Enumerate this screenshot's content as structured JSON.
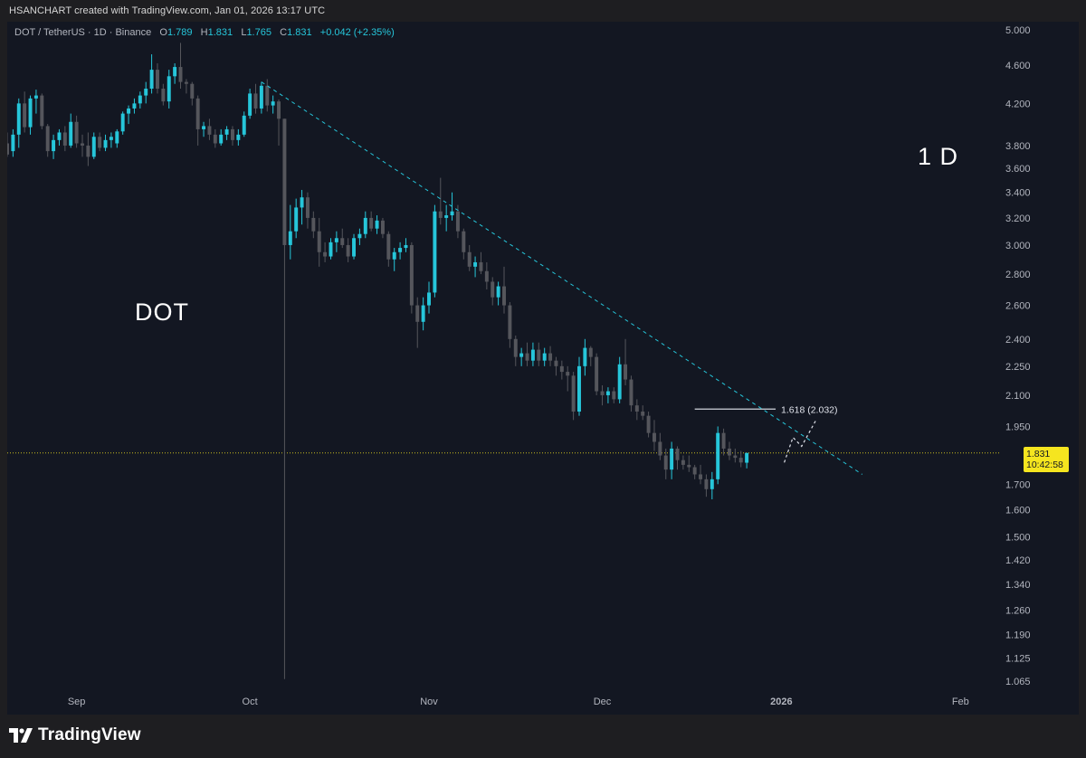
{
  "header": {
    "text": "HSANCHART created with TradingView.com, Jan 01, 2026 13:17 UTC"
  },
  "legend": {
    "symbol": "DOT / TetherUS · 1D · Binance",
    "o_label": "O",
    "o": "1.789",
    "h_label": "H",
    "h": "1.831",
    "l_label": "L",
    "l": "1.765",
    "c_label": "C",
    "c": "1.831",
    "change": "+0.042 (+2.35%)"
  },
  "annotations": {
    "left_label": "DOT",
    "right_label": "1 D",
    "fib_label": "1.618 (2.032)"
  },
  "price_tag": {
    "price": "1.831",
    "countdown": "10:42:58"
  },
  "footer": {
    "brand": "TradingView"
  },
  "colors": {
    "background": "#131722",
    "up": "#26c6da",
    "down": "#55565c",
    "trendline": "#26c6da",
    "price_tag": "#f5e51f"
  },
  "chart_data": {
    "type": "candlestick",
    "y_scale": "log",
    "ylim": [
      1.04,
      5.1
    ],
    "y_ticks": [
      "5.000",
      "4.600",
      "4.200",
      "3.800",
      "3.600",
      "3.400",
      "3.200",
      "3.000",
      "2.800",
      "2.600",
      "2.400",
      "2.250",
      "2.100",
      "1.950",
      "1.700",
      "1.600",
      "1.500",
      "1.420",
      "1.340",
      "1.260",
      "1.190",
      "1.125",
      "1.065"
    ],
    "x_ticks": [
      {
        "label": "Sep",
        "day": 8
      },
      {
        "label": "Oct",
        "day": 38
      },
      {
        "label": "Nov",
        "day": 69
      },
      {
        "label": "Dec",
        "day": 99
      },
      {
        "label": "2026",
        "day": 130,
        "bold": true
      },
      {
        "label": "Feb",
        "day": 161
      }
    ],
    "x_range_days": [
      -4,
      168
    ],
    "current_price": 1.831,
    "fib_level": {
      "ratio": 1.618,
      "price": 2.032,
      "day_from": 115,
      "day_to": 129
    },
    "trendline": {
      "from": {
        "day": 40,
        "price": 4.42
      },
      "to": {
        "day": 144,
        "price": 1.74
      }
    },
    "projection_path": [
      {
        "day": 130.5,
        "price": 1.79
      },
      {
        "day": 132,
        "price": 1.9
      },
      {
        "day": 133.5,
        "price": 1.86
      },
      {
        "day": 136,
        "price": 1.98
      }
    ],
    "candles": [
      {
        "day": -4,
        "o": 3.82,
        "h": 3.92,
        "l": 3.7,
        "c": 3.72
      },
      {
        "day": -3,
        "o": 3.75,
        "h": 3.95,
        "l": 3.7,
        "c": 3.9
      },
      {
        "day": -2,
        "o": 3.9,
        "h": 4.25,
        "l": 3.78,
        "c": 4.2
      },
      {
        "day": -1,
        "o": 4.2,
        "h": 4.32,
        "l": 3.92,
        "c": 3.97
      },
      {
        "day": 0,
        "o": 3.97,
        "h": 4.28,
        "l": 3.9,
        "c": 4.25
      },
      {
        "day": 1,
        "o": 4.25,
        "h": 4.34,
        "l": 4.1,
        "c": 4.28
      },
      {
        "day": 2,
        "o": 4.28,
        "h": 4.3,
        "l": 3.95,
        "c": 3.98
      },
      {
        "day": 3,
        "o": 3.98,
        "h": 4.0,
        "l": 3.7,
        "c": 3.75
      },
      {
        "day": 4,
        "o": 3.75,
        "h": 3.9,
        "l": 3.68,
        "c": 3.85
      },
      {
        "day": 5,
        "o": 3.85,
        "h": 3.95,
        "l": 3.8,
        "c": 3.92
      },
      {
        "day": 6,
        "o": 3.92,
        "h": 3.98,
        "l": 3.75,
        "c": 3.8
      },
      {
        "day": 7,
        "o": 3.8,
        "h": 4.1,
        "l": 3.78,
        "c": 4.02
      },
      {
        "day": 8,
        "o": 4.02,
        "h": 4.08,
        "l": 3.78,
        "c": 3.82
      },
      {
        "day": 9,
        "o": 3.82,
        "h": 3.9,
        "l": 3.7,
        "c": 3.8
      },
      {
        "day": 10,
        "o": 3.8,
        "h": 3.92,
        "l": 3.62,
        "c": 3.7
      },
      {
        "day": 11,
        "o": 3.7,
        "h": 3.92,
        "l": 3.68,
        "c": 3.88
      },
      {
        "day": 12,
        "o": 3.88,
        "h": 3.92,
        "l": 3.75,
        "c": 3.78
      },
      {
        "day": 13,
        "o": 3.78,
        "h": 3.9,
        "l": 3.75,
        "c": 3.85
      },
      {
        "day": 14,
        "o": 3.85,
        "h": 3.92,
        "l": 3.78,
        "c": 3.88
      },
      {
        "day": 15,
        "o": 3.82,
        "h": 3.95,
        "l": 3.78,
        "c": 3.93
      },
      {
        "day": 16,
        "o": 3.93,
        "h": 4.12,
        "l": 3.9,
        "c": 4.1
      },
      {
        "day": 17,
        "o": 4.1,
        "h": 4.18,
        "l": 4.0,
        "c": 4.15
      },
      {
        "day": 18,
        "o": 4.15,
        "h": 4.25,
        "l": 4.1,
        "c": 4.2
      },
      {
        "day": 19,
        "o": 4.2,
        "h": 4.32,
        "l": 4.15,
        "c": 4.28
      },
      {
        "day": 20,
        "o": 4.28,
        "h": 4.42,
        "l": 4.2,
        "c": 4.35
      },
      {
        "day": 21,
        "o": 4.35,
        "h": 4.72,
        "l": 4.3,
        "c": 4.55
      },
      {
        "day": 22,
        "o": 4.55,
        "h": 4.62,
        "l": 4.3,
        "c": 4.35
      },
      {
        "day": 23,
        "o": 4.35,
        "h": 4.4,
        "l": 4.18,
        "c": 4.22
      },
      {
        "day": 24,
        "o": 4.22,
        "h": 4.55,
        "l": 4.15,
        "c": 4.48
      },
      {
        "day": 25,
        "o": 4.48,
        "h": 4.62,
        "l": 4.4,
        "c": 4.58
      },
      {
        "day": 26,
        "o": 4.58,
        "h": 4.85,
        "l": 4.35,
        "c": 4.42
      },
      {
        "day": 27,
        "o": 4.42,
        "h": 4.45,
        "l": 4.3,
        "c": 4.4
      },
      {
        "day": 28,
        "o": 4.4,
        "h": 4.42,
        "l": 4.18,
        "c": 4.25
      },
      {
        "day": 29,
        "o": 4.25,
        "h": 4.28,
        "l": 3.8,
        "c": 3.95
      },
      {
        "day": 30,
        "o": 3.95,
        "h": 4.02,
        "l": 3.88,
        "c": 3.98
      },
      {
        "day": 31,
        "o": 3.98,
        "h": 4.05,
        "l": 3.85,
        "c": 3.9
      },
      {
        "day": 32,
        "o": 3.9,
        "h": 3.95,
        "l": 3.78,
        "c": 3.82
      },
      {
        "day": 33,
        "o": 3.82,
        "h": 3.95,
        "l": 3.8,
        "c": 3.9
      },
      {
        "day": 34,
        "o": 3.9,
        "h": 3.98,
        "l": 3.85,
        "c": 3.95
      },
      {
        "day": 35,
        "o": 3.95,
        "h": 3.98,
        "l": 3.8,
        "c": 3.85
      },
      {
        "day": 36,
        "o": 3.85,
        "h": 3.95,
        "l": 3.8,
        "c": 3.9
      },
      {
        "day": 37,
        "o": 3.9,
        "h": 4.12,
        "l": 3.88,
        "c": 4.08
      },
      {
        "day": 38,
        "o": 4.08,
        "h": 4.35,
        "l": 4.05,
        "c": 4.3
      },
      {
        "day": 39,
        "o": 4.3,
        "h": 4.4,
        "l": 4.1,
        "c": 4.15
      },
      {
        "day": 40,
        "o": 4.15,
        "h": 4.42,
        "l": 4.1,
        "c": 4.38
      },
      {
        "day": 41,
        "o": 4.38,
        "h": 4.45,
        "l": 4.12,
        "c": 4.18
      },
      {
        "day": 42,
        "o": 4.18,
        "h": 4.28,
        "l": 4.1,
        "c": 4.22
      },
      {
        "day": 43,
        "o": 4.22,
        "h": 4.24,
        "l": 3.8,
        "c": 4.05
      },
      {
        "day": 44,
        "o": 4.05,
        "h": 4.05,
        "l": 1.07,
        "c": 3.0
      },
      {
        "day": 45,
        "o": 3.0,
        "h": 3.3,
        "l": 2.9,
        "c": 3.1
      },
      {
        "day": 46,
        "o": 3.1,
        "h": 3.35,
        "l": 3.05,
        "c": 3.28
      },
      {
        "day": 47,
        "o": 3.28,
        "h": 3.42,
        "l": 3.15,
        "c": 3.36
      },
      {
        "day": 48,
        "o": 3.36,
        "h": 3.4,
        "l": 3.12,
        "c": 3.2
      },
      {
        "day": 49,
        "o": 3.2,
        "h": 3.25,
        "l": 3.05,
        "c": 3.1
      },
      {
        "day": 50,
        "o": 3.1,
        "h": 3.2,
        "l": 2.85,
        "c": 2.95
      },
      {
        "day": 51,
        "o": 2.95,
        "h": 3.02,
        "l": 2.88,
        "c": 2.92
      },
      {
        "day": 52,
        "o": 2.92,
        "h": 3.05,
        "l": 2.9,
        "c": 3.02
      },
      {
        "day": 53,
        "o": 3.02,
        "h": 3.1,
        "l": 2.95,
        "c": 3.05
      },
      {
        "day": 54,
        "o": 3.05,
        "h": 3.12,
        "l": 2.98,
        "c": 3.0
      },
      {
        "day": 55,
        "o": 3.0,
        "h": 3.05,
        "l": 2.88,
        "c": 2.92
      },
      {
        "day": 56,
        "o": 2.92,
        "h": 3.08,
        "l": 2.9,
        "c": 3.05
      },
      {
        "day": 57,
        "o": 3.05,
        "h": 3.12,
        "l": 3.0,
        "c": 3.08
      },
      {
        "day": 58,
        "o": 3.08,
        "h": 3.25,
        "l": 3.05,
        "c": 3.2
      },
      {
        "day": 59,
        "o": 3.2,
        "h": 3.25,
        "l": 3.1,
        "c": 3.12
      },
      {
        "day": 60,
        "o": 3.12,
        "h": 3.22,
        "l": 3.08,
        "c": 3.18
      },
      {
        "day": 61,
        "o": 3.18,
        "h": 3.2,
        "l": 3.05,
        "c": 3.08
      },
      {
        "day": 62,
        "o": 3.08,
        "h": 3.1,
        "l": 2.85,
        "c": 2.9
      },
      {
        "day": 63,
        "o": 2.9,
        "h": 2.98,
        "l": 2.82,
        "c": 2.95
      },
      {
        "day": 64,
        "o": 2.95,
        "h": 3.02,
        "l": 2.9,
        "c": 2.98
      },
      {
        "day": 65,
        "o": 2.98,
        "h": 3.05,
        "l": 2.95,
        "c": 3.0
      },
      {
        "day": 66,
        "o": 3.0,
        "h": 3.02,
        "l": 2.55,
        "c": 2.6
      },
      {
        "day": 67,
        "o": 2.6,
        "h": 2.65,
        "l": 2.35,
        "c": 2.5
      },
      {
        "day": 68,
        "o": 2.5,
        "h": 2.65,
        "l": 2.45,
        "c": 2.6
      },
      {
        "day": 69,
        "o": 2.6,
        "h": 2.75,
        "l": 2.55,
        "c": 2.68
      },
      {
        "day": 70,
        "o": 2.68,
        "h": 3.3,
        "l": 2.65,
        "c": 3.25
      },
      {
        "day": 71,
        "o": 3.25,
        "h": 3.52,
        "l": 3.15,
        "c": 3.2
      },
      {
        "day": 72,
        "o": 3.2,
        "h": 3.3,
        "l": 3.1,
        "c": 3.22
      },
      {
        "day": 73,
        "o": 3.22,
        "h": 3.4,
        "l": 3.18,
        "c": 3.25
      },
      {
        "day": 74,
        "o": 3.25,
        "h": 3.3,
        "l": 3.05,
        "c": 3.1
      },
      {
        "day": 75,
        "o": 3.1,
        "h": 3.12,
        "l": 2.9,
        "c": 2.95
      },
      {
        "day": 76,
        "o": 2.95,
        "h": 3.0,
        "l": 2.82,
        "c": 2.85
      },
      {
        "day": 77,
        "o": 2.85,
        "h": 2.92,
        "l": 2.78,
        "c": 2.88
      },
      {
        "day": 78,
        "o": 2.88,
        "h": 2.95,
        "l": 2.8,
        "c": 2.82
      },
      {
        "day": 79,
        "o": 2.82,
        "h": 2.88,
        "l": 2.7,
        "c": 2.75
      },
      {
        "day": 80,
        "o": 2.75,
        "h": 2.78,
        "l": 2.6,
        "c": 2.65
      },
      {
        "day": 81,
        "o": 2.65,
        "h": 2.75,
        "l": 2.6,
        "c": 2.72
      },
      {
        "day": 82,
        "o": 2.72,
        "h": 2.85,
        "l": 2.55,
        "c": 2.6
      },
      {
        "day": 83,
        "o": 2.6,
        "h": 2.62,
        "l": 2.35,
        "c": 2.4
      },
      {
        "day": 84,
        "o": 2.4,
        "h": 2.42,
        "l": 2.25,
        "c": 2.3
      },
      {
        "day": 85,
        "o": 2.3,
        "h": 2.35,
        "l": 2.25,
        "c": 2.32
      },
      {
        "day": 86,
        "o": 2.32,
        "h": 2.38,
        "l": 2.25,
        "c": 2.28
      },
      {
        "day": 87,
        "o": 2.28,
        "h": 2.38,
        "l": 2.25,
        "c": 2.34
      },
      {
        "day": 88,
        "o": 2.34,
        "h": 2.38,
        "l": 2.25,
        "c": 2.28
      },
      {
        "day": 89,
        "o": 2.28,
        "h": 2.35,
        "l": 2.25,
        "c": 2.32
      },
      {
        "day": 90,
        "o": 2.32,
        "h": 2.36,
        "l": 2.25,
        "c": 2.28
      },
      {
        "day": 91,
        "o": 2.28,
        "h": 2.3,
        "l": 2.2,
        "c": 2.25
      },
      {
        "day": 92,
        "o": 2.25,
        "h": 2.28,
        "l": 2.18,
        "c": 2.22
      },
      {
        "day": 93,
        "o": 2.22,
        "h": 2.25,
        "l": 2.12,
        "c": 2.2
      },
      {
        "day": 94,
        "o": 2.2,
        "h": 2.22,
        "l": 1.98,
        "c": 2.02
      },
      {
        "day": 95,
        "o": 2.02,
        "h": 2.3,
        "l": 2.0,
        "c": 2.25
      },
      {
        "day": 96,
        "o": 2.25,
        "h": 2.4,
        "l": 2.2,
        "c": 2.35
      },
      {
        "day": 97,
        "o": 2.35,
        "h": 2.36,
        "l": 2.25,
        "c": 2.3
      },
      {
        "day": 98,
        "o": 2.3,
        "h": 2.32,
        "l": 2.1,
        "c": 2.12
      },
      {
        "day": 99,
        "o": 2.12,
        "h": 2.15,
        "l": 2.05,
        "c": 2.1
      },
      {
        "day": 100,
        "o": 2.1,
        "h": 2.14,
        "l": 2.06,
        "c": 2.12
      },
      {
        "day": 101,
        "o": 2.12,
        "h": 2.14,
        "l": 2.06,
        "c": 2.08
      },
      {
        "day": 102,
        "o": 2.08,
        "h": 2.3,
        "l": 2.06,
        "c": 2.26
      },
      {
        "day": 103,
        "o": 2.26,
        "h": 2.4,
        "l": 2.15,
        "c": 2.18
      },
      {
        "day": 104,
        "o": 2.18,
        "h": 2.2,
        "l": 2.02,
        "c": 2.05
      },
      {
        "day": 105,
        "o": 2.05,
        "h": 2.08,
        "l": 1.98,
        "c": 2.02
      },
      {
        "day": 106,
        "o": 2.02,
        "h": 2.05,
        "l": 1.98,
        "c": 2.0
      },
      {
        "day": 107,
        "o": 2.0,
        "h": 2.02,
        "l": 1.9,
        "c": 1.92
      },
      {
        "day": 108,
        "o": 1.92,
        "h": 1.98,
        "l": 1.84,
        "c": 1.88
      },
      {
        "day": 109,
        "o": 1.88,
        "h": 1.92,
        "l": 1.8,
        "c": 1.82
      },
      {
        "day": 110,
        "o": 1.82,
        "h": 1.85,
        "l": 1.72,
        "c": 1.76
      },
      {
        "day": 111,
        "o": 1.76,
        "h": 1.88,
        "l": 1.72,
        "c": 1.85
      },
      {
        "day": 112,
        "o": 1.85,
        "h": 1.86,
        "l": 1.76,
        "c": 1.8
      },
      {
        "day": 113,
        "o": 1.8,
        "h": 1.82,
        "l": 1.76,
        "c": 1.78
      },
      {
        "day": 114,
        "o": 1.78,
        "h": 1.82,
        "l": 1.75,
        "c": 1.77
      },
      {
        "day": 115,
        "o": 1.77,
        "h": 1.78,
        "l": 1.72,
        "c": 1.74
      },
      {
        "day": 116,
        "o": 1.74,
        "h": 1.78,
        "l": 1.7,
        "c": 1.72
      },
      {
        "day": 117,
        "o": 1.72,
        "h": 1.74,
        "l": 1.65,
        "c": 1.68
      },
      {
        "day": 118,
        "o": 1.68,
        "h": 1.75,
        "l": 1.64,
        "c": 1.72
      },
      {
        "day": 119,
        "o": 1.72,
        "h": 1.95,
        "l": 1.7,
        "c": 1.92
      },
      {
        "day": 120,
        "o": 1.92,
        "h": 1.94,
        "l": 1.82,
        "c": 1.85
      },
      {
        "day": 121,
        "o": 1.85,
        "h": 1.88,
        "l": 1.8,
        "c": 1.82
      },
      {
        "day": 122,
        "o": 1.82,
        "h": 1.85,
        "l": 1.79,
        "c": 1.81
      },
      {
        "day": 123,
        "o": 1.81,
        "h": 1.84,
        "l": 1.77,
        "c": 1.79
      },
      {
        "day": 124,
        "o": 1.789,
        "h": 1.831,
        "l": 1.765,
        "c": 1.831
      }
    ]
  }
}
